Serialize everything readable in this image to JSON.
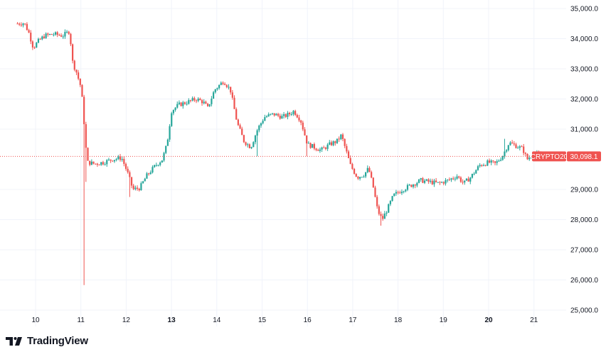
{
  "chart_data": {
    "type": "candlestick",
    "x": [
      "10",
      "11",
      "12",
      "13",
      "14",
      "15",
      "16",
      "17",
      "18",
      "19",
      "20",
      "21"
    ],
    "x_bold": [
      "13",
      "20"
    ],
    "yticks": [
      "35,000.0",
      "34,000.0",
      "33,000.0",
      "32,000.0",
      "31,000.0",
      "29,000.0",
      "28,000.0",
      "27,000.0",
      "26,000.0",
      "25,000.0"
    ],
    "ylim": [
      25000,
      35000
    ],
    "grid": true,
    "current_price": 30098.1,
    "current_price_label": "30,098.1",
    "symbol_tag": "CRYPTO20",
    "anchors": [
      [
        9.6,
        34500
      ],
      [
        9.75,
        34520
      ],
      [
        9.85,
        34200
      ],
      [
        9.95,
        33700
      ],
      [
        10.05,
        33900
      ],
      [
        10.2,
        34100
      ],
      [
        10.4,
        34150
      ],
      [
        10.6,
        34100
      ],
      [
        10.75,
        34250
      ],
      [
        10.82,
        33200
      ],
      [
        10.9,
        32900
      ],
      [
        11.0,
        32400
      ],
      [
        11.05,
        31700
      ],
      [
        11.1,
        30500
      ],
      [
        11.15,
        29900
      ],
      [
        11.3,
        29850
      ],
      [
        11.5,
        29900
      ],
      [
        11.7,
        30000
      ],
      [
        11.9,
        30050
      ],
      [
        12.02,
        29600
      ],
      [
        12.15,
        29000
      ],
      [
        12.3,
        29050
      ],
      [
        12.45,
        29450
      ],
      [
        12.65,
        29800
      ],
      [
        12.8,
        30000
      ],
      [
        12.9,
        30500
      ],
      [
        13.0,
        31600
      ],
      [
        13.15,
        31800
      ],
      [
        13.35,
        31900
      ],
      [
        13.55,
        32000
      ],
      [
        13.7,
        31900
      ],
      [
        13.8,
        31700
      ],
      [
        13.95,
        32300
      ],
      [
        14.15,
        32600
      ],
      [
        14.3,
        32300
      ],
      [
        14.45,
        31200
      ],
      [
        14.6,
        30600
      ],
      [
        14.75,
        30400
      ],
      [
        14.9,
        31000
      ],
      [
        15.05,
        31400
      ],
      [
        15.25,
        31500
      ],
      [
        15.45,
        31400
      ],
      [
        15.6,
        31500
      ],
      [
        15.7,
        31600
      ],
      [
        15.85,
        31300
      ],
      [
        16.0,
        30500
      ],
      [
        16.15,
        30400
      ],
      [
        16.3,
        30300
      ],
      [
        16.5,
        30500
      ],
      [
        16.65,
        30600
      ],
      [
        16.75,
        30800
      ],
      [
        16.85,
        30300
      ],
      [
        16.95,
        29800
      ],
      [
        17.1,
        29400
      ],
      [
        17.25,
        29500
      ],
      [
        17.35,
        29700
      ],
      [
        17.45,
        29100
      ],
      [
        17.55,
        28300
      ],
      [
        17.65,
        28000
      ],
      [
        17.75,
        28300
      ],
      [
        17.9,
        28800
      ],
      [
        18.1,
        29000
      ],
      [
        18.3,
        29150
      ],
      [
        18.5,
        29300
      ],
      [
        18.7,
        29250
      ],
      [
        18.9,
        29200
      ],
      [
        19.1,
        29300
      ],
      [
        19.3,
        29450
      ],
      [
        19.45,
        29200
      ],
      [
        19.6,
        29400
      ],
      [
        19.8,
        29800
      ],
      [
        20.0,
        29900
      ],
      [
        20.15,
        29850
      ],
      [
        20.3,
        30100
      ],
      [
        20.45,
        30550
      ],
      [
        20.6,
        30450
      ],
      [
        20.75,
        30350
      ],
      [
        20.85,
        30000
      ],
      [
        21.0,
        30200
      ],
      [
        21.15,
        30098
      ]
    ],
    "spikes": [
      {
        "x": 11.08,
        "low": 25830
      },
      {
        "x": 11.12,
        "low": 29250
      },
      {
        "x": 12.08,
        "low": 28750
      },
      {
        "x": 17.62,
        "low": 27800
      },
      {
        "x": 20.35,
        "high": 30680
      },
      {
        "x": 16.0,
        "low": 30100
      },
      {
        "x": 14.9,
        "low": 30100
      }
    ],
    "bar_spacing_days": 0.042,
    "colors": {
      "up": "#26a69a",
      "down": "#ef5350",
      "price_line": "#ef5350",
      "text": "#131722",
      "grid": "#f0f3fa"
    }
  },
  "branding": {
    "logo_text": "TradingView"
  }
}
